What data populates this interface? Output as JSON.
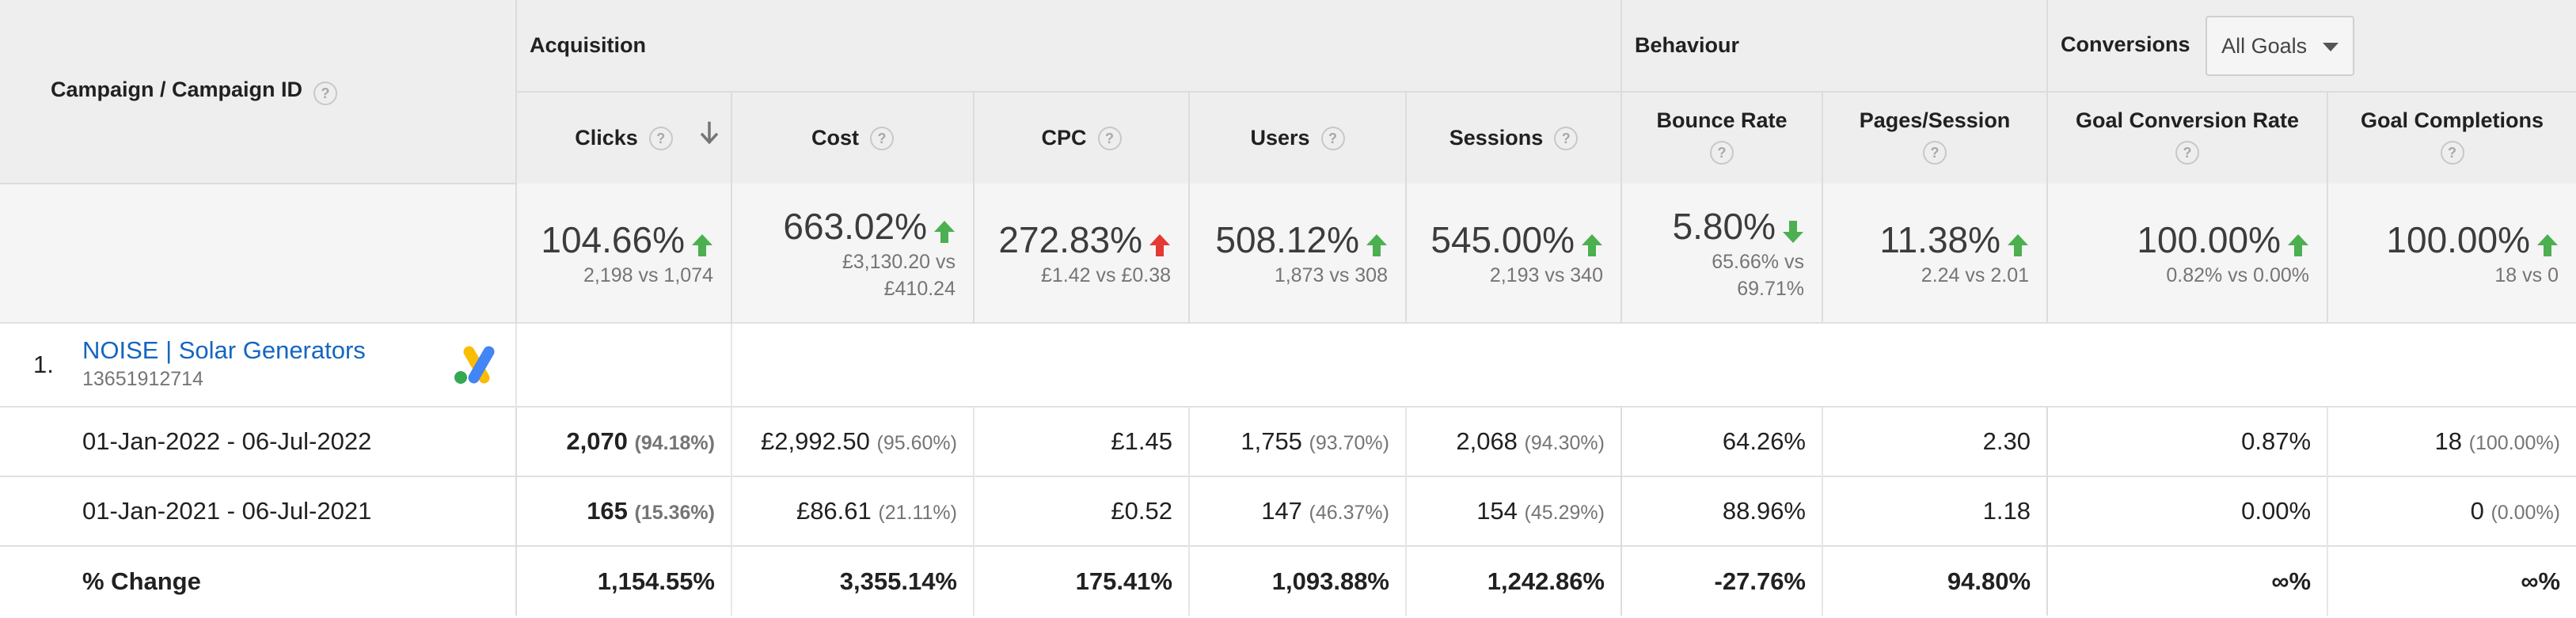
{
  "header": {
    "campaign_col": "Campaign / Campaign ID",
    "groups": {
      "acquisition": "Acquisition",
      "behaviour": "Behaviour",
      "conversions": "Conversions"
    },
    "goal_select": "All Goals",
    "help_glyph": "?",
    "columns": [
      "Clicks",
      "Cost",
      "CPC",
      "Users",
      "Sessions",
      "Bounce Rate",
      "Pages/Session",
      "Goal Conversion Rate",
      "Goal Completions"
    ]
  },
  "summary": [
    {
      "pct": "104.66%",
      "dir": "up",
      "color": "#4caf50",
      "cmp": "2,198 vs 1,074"
    },
    {
      "pct": "663.02%",
      "dir": "up",
      "color": "#4caf50",
      "cmp1": "£3,130.20 vs",
      "cmp2": "£410.24"
    },
    {
      "pct": "272.83%",
      "dir": "up",
      "color": "#e53935",
      "cmp": "£1.42 vs £0.38"
    },
    {
      "pct": "508.12%",
      "dir": "up",
      "color": "#4caf50",
      "cmp": "1,873 vs 308"
    },
    {
      "pct": "545.00%",
      "dir": "up",
      "color": "#4caf50",
      "cmp": "2,193 vs 340"
    },
    {
      "pct": "5.80%",
      "dir": "down",
      "color": "#4caf50",
      "cmp1": "65.66% vs",
      "cmp2": "69.71%"
    },
    {
      "pct": "11.38%",
      "dir": "up",
      "color": "#4caf50",
      "cmp": "2.24 vs 2.01"
    },
    {
      "pct": "100.00%",
      "dir": "up",
      "color": "#4caf50",
      "cmp": "0.82% vs 0.00%"
    },
    {
      "pct": "100.00%",
      "dir": "up",
      "color": "#4caf50",
      "cmp": "18 vs 0"
    }
  ],
  "campaign": {
    "index": "1.",
    "name": "NOISE | Solar Generators",
    "id": "13651912714",
    "icon": "google-ads-icon"
  },
  "rows": [
    {
      "label": "01-Jan-2022 - 06-Jul-2022",
      "cells": [
        {
          "v": "2,070",
          "s": "(94.18%)"
        },
        {
          "v": "£2,992.50",
          "s": "(95.60%)"
        },
        {
          "v": "£1.45",
          "s": ""
        },
        {
          "v": "1,755",
          "s": "(93.70%)"
        },
        {
          "v": "2,068",
          "s": "(94.30%)"
        },
        {
          "v": "64.26%",
          "s": ""
        },
        {
          "v": "2.30",
          "s": ""
        },
        {
          "v": "0.87%",
          "s": ""
        },
        {
          "v": "18",
          "s": "(100.00%)"
        }
      ]
    },
    {
      "label": "01-Jan-2021 - 06-Jul-2021",
      "cells": [
        {
          "v": "165",
          "s": "(15.36%)"
        },
        {
          "v": "£86.61",
          "s": "(21.11%)"
        },
        {
          "v": "£0.52",
          "s": ""
        },
        {
          "v": "147",
          "s": "(46.37%)"
        },
        {
          "v": "154",
          "s": "(45.29%)"
        },
        {
          "v": "88.96%",
          "s": ""
        },
        {
          "v": "1.18",
          "s": ""
        },
        {
          "v": "0.00%",
          "s": ""
        },
        {
          "v": "0",
          "s": "(0.00%)"
        }
      ]
    },
    {
      "label": "% Change",
      "cells": [
        {
          "v": "1,154.55%",
          "s": ""
        },
        {
          "v": "3,355.14%",
          "s": ""
        },
        {
          "v": "175.41%",
          "s": ""
        },
        {
          "v": "1,093.88%",
          "s": ""
        },
        {
          "v": "1,242.86%",
          "s": ""
        },
        {
          "v": "-27.76%",
          "s": ""
        },
        {
          "v": "94.80%",
          "s": ""
        },
        {
          "v": "∞%",
          "s": ""
        },
        {
          "v": "∞%",
          "s": ""
        }
      ]
    }
  ]
}
